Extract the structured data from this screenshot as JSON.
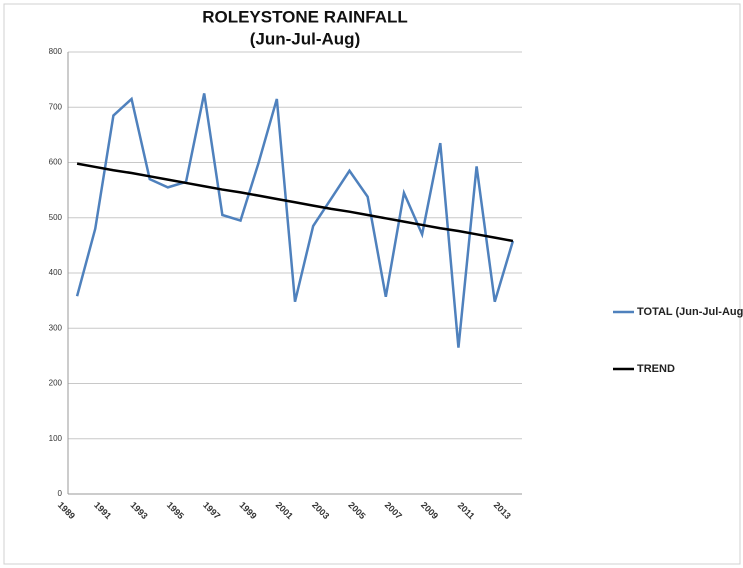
{
  "chart_data": {
    "type": "line",
    "title": "ROLEYSTONE RAINFALL",
    "subtitle": "(Jun-Jul-Aug)",
    "categories": [
      "1989",
      null,
      "1991",
      null,
      "1993",
      null,
      "1995",
      null,
      "1997",
      null,
      "1999",
      null,
      "2001",
      null,
      "2003",
      null,
      "2005",
      null,
      "2007",
      null,
      "2009",
      null,
      "2011",
      null,
      "2013"
    ],
    "series": [
      {
        "name": "TOTAL (Jun-Jul-Aug)",
        "color": "#4f81bd",
        "values": [
          358,
          480,
          685,
          715,
          570,
          555,
          565,
          725,
          505,
          495,
          600,
          715,
          348,
          485,
          535,
          585,
          538,
          357,
          545,
          470,
          635,
          265,
          593,
          348,
          458
        ]
      },
      {
        "name": "TREND",
        "color": "#000000",
        "values": [
          598,
          592,
          586,
          581,
          575,
          569,
          563,
          557,
          551,
          546,
          540,
          534,
          528,
          522,
          516,
          511,
          505,
          499,
          493,
          487,
          481,
          476,
          470,
          464,
          458
        ]
      }
    ],
    "ylim": [
      0,
      800
    ],
    "yticks": [
      0,
      100,
      200,
      300,
      400,
      500,
      600,
      700,
      800
    ],
    "grid": true
  }
}
